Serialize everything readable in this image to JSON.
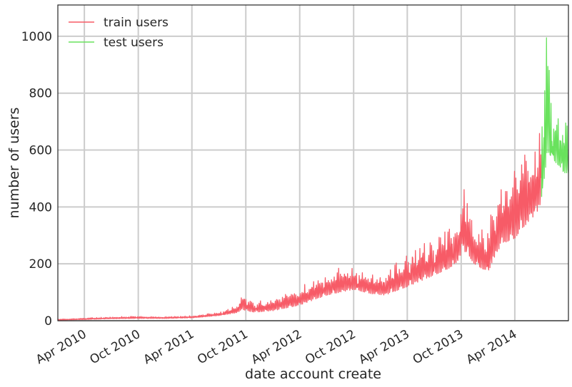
{
  "chart_data": {
    "type": "line",
    "xlabel": "date account create",
    "ylabel": "number of users",
    "x_range": [
      "2010-01-01",
      "2014-09-30"
    ],
    "ylim": [
      0,
      1110
    ],
    "y_ticks": [
      0,
      200,
      400,
      600,
      800,
      1000
    ],
    "x_ticks": [
      {
        "date": "2010-04-01",
        "label": "Apr 2010"
      },
      {
        "date": "2010-10-01",
        "label": "Oct 2010"
      },
      {
        "date": "2011-04-01",
        "label": "Apr 2011"
      },
      {
        "date": "2011-10-01",
        "label": "Oct 2011"
      },
      {
        "date": "2012-04-01",
        "label": "Apr 2012"
      },
      {
        "date": "2012-10-01",
        "label": "Oct 2012"
      },
      {
        "date": "2013-04-01",
        "label": "Apr 2013"
      },
      {
        "date": "2013-10-01",
        "label": "Oct 2013"
      },
      {
        "date": "2014-04-01",
        "label": "Apr 2014"
      }
    ],
    "grid": true,
    "legend_position": "top-left",
    "series": [
      {
        "name": "train users",
        "color": "#f75b67",
        "x": [
          "2010-01-01",
          "2010-04-01",
          "2010-07-01",
          "2010-10-01",
          "2011-01-01",
          "2011-04-01",
          "2011-07-01",
          "2011-09-01",
          "2011-09-20",
          "2011-10-01",
          "2011-11-01",
          "2012-01-01",
          "2012-04-01",
          "2012-07-01",
          "2012-08-15",
          "2012-10-01",
          "2012-12-01",
          "2013-01-15",
          "2013-04-01",
          "2013-07-01",
          "2013-09-01",
          "2013-09-28",
          "2013-10-01",
          "2013-11-15",
          "2014-01-01",
          "2014-01-15",
          "2014-02-15",
          "2014-04-01",
          "2014-05-01",
          "2014-06-15",
          "2014-06-30"
        ],
        "low": [
          2,
          4,
          7,
          8,
          8,
          10,
          18,
          28,
          40,
          35,
          30,
          35,
          55,
          90,
          100,
          110,
          95,
          90,
          120,
          160,
          190,
          220,
          260,
          200,
          170,
          210,
          270,
          290,
          330,
          380,
          420
        ],
        "high": [
          6,
          10,
          14,
          16,
          15,
          18,
          30,
          55,
          105,
          80,
          70,
          80,
          120,
          170,
          190,
          185,
          165,
          175,
          240,
          300,
          340,
          380,
          520,
          330,
          320,
          440,
          480,
          560,
          600,
          640,
          680
        ]
      },
      {
        "name": "test users",
        "color": "#69e25d",
        "x": [
          "2014-07-01",
          "2014-07-10",
          "2014-07-20",
          "2014-08-01",
          "2014-08-15",
          "2014-09-01",
          "2014-09-15",
          "2014-09-30"
        ],
        "low": [
          400,
          480,
          600,
          580,
          560,
          540,
          520,
          520
        ],
        "high": [
          660,
          980,
          1100,
          800,
          760,
          740,
          720,
          700
        ]
      }
    ]
  }
}
